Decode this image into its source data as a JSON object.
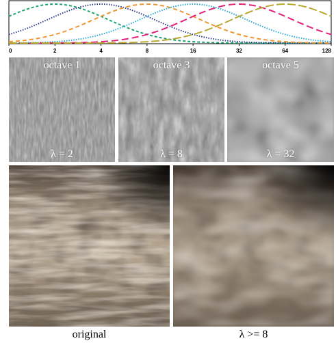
{
  "chart_data": {
    "type": "line",
    "x_ticks": [
      "0",
      "2",
      "4",
      "8",
      "16",
      "32",
      "64",
      "128"
    ],
    "x_scale": "log2",
    "series": [
      {
        "center": 2,
        "color": "#1aa36a",
        "dash": "4 3"
      },
      {
        "center": 4,
        "color": "#2b3a8c",
        "dash": "1.5 2"
      },
      {
        "center": 8,
        "color": "#f0962e",
        "dash": "6 4"
      },
      {
        "center": 16,
        "color": "#27a9d6",
        "dash": "1.5 2"
      },
      {
        "center": 32,
        "color": "#e0207a",
        "dash": "10 5"
      },
      {
        "center": 64,
        "color": "#b8a832",
        "dash": "12 4"
      }
    ]
  },
  "octave_panels": [
    {
      "title": "octave 1",
      "lambda": "λ = 2"
    },
    {
      "title": "octave 3",
      "lambda": "λ = 8"
    },
    {
      "title": "octave 5",
      "lambda": "λ = 32"
    }
  ],
  "captions": {
    "left": "original",
    "right": "λ >= 8"
  }
}
